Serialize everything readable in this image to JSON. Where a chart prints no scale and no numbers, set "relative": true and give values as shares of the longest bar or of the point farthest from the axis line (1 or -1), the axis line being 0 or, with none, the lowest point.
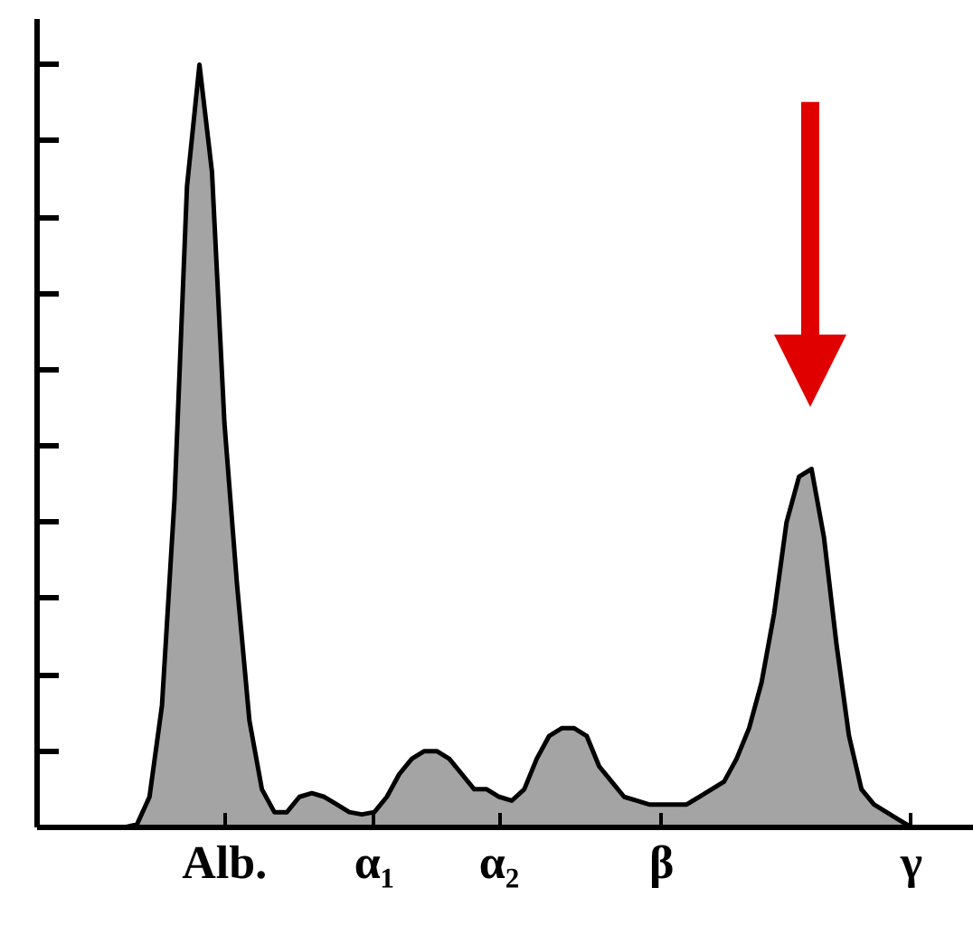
{
  "chart_data": {
    "type": "area",
    "relative": true,
    "tick_labels": "x",
    "grid": false,
    "categories": [
      null,
      null,
      null,
      null,
      null,
      null,
      null,
      null,
      null,
      "Alb.",
      null,
      null,
      null,
      null,
      null,
      null,
      null,
      null,
      null,
      null,
      null,
      "α₁",
      null,
      null,
      null,
      null,
      null,
      null,
      null,
      null,
      null,
      "α₂",
      null,
      null,
      null,
      null,
      null,
      null,
      null,
      null,
      null,
      null,
      null,
      null,
      "β",
      null,
      null,
      null,
      null,
      null,
      null,
      null,
      null,
      null,
      null,
      null,
      null,
      null,
      null,
      null,
      null,
      null,
      null,
      null,
      "γ",
      null,
      null
    ],
    "series": [
      {
        "color": "#9a9a9a",
        "values": [
          0,
          0,
          0.004,
          0.04,
          0.16,
          0.43,
          0.84,
          1.0,
          0.86,
          0.53,
          0.32,
          0.14,
          0.05,
          0.02,
          0.02,
          0.04,
          0.045,
          0.04,
          0.03,
          0.02,
          0.017,
          0.02,
          0.04,
          0.07,
          0.09,
          0.1,
          0.1,
          0.09,
          0.07,
          0.05,
          0.05,
          0.04,
          0.035,
          0.05,
          0.09,
          0.12,
          0.13,
          0.13,
          0.12,
          0.08,
          0.06,
          0.04,
          0.035,
          0.03,
          0.03,
          0.03,
          0.03,
          0.04,
          0.05,
          0.06,
          0.09,
          0.13,
          0.19,
          0.28,
          0.4,
          0.46,
          0.47,
          0.38,
          0.24,
          0.12,
          0.05,
          0.03,
          0.02,
          0.01,
          0,
          0,
          0
        ]
      }
    ]
  }
}
